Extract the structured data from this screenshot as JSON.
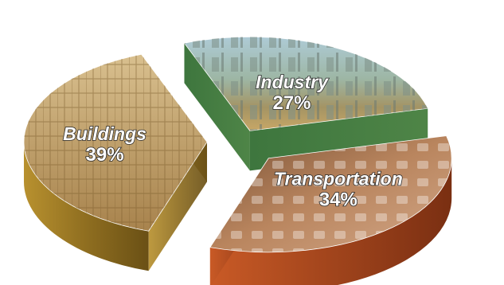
{
  "chart_data": {
    "type": "pie",
    "categories": [
      "Industry",
      "Transportation",
      "Buildings"
    ],
    "values": [
      27,
      34,
      39
    ],
    "value_labels": [
      "27%",
      "34%",
      "39%"
    ],
    "colors": {
      "Industry": "#3f7a37",
      "Transportation": "#b14f26",
      "Buildings": "#9b7c2c"
    },
    "style": "3d-exploded-photo-fill",
    "legend": "none"
  }
}
